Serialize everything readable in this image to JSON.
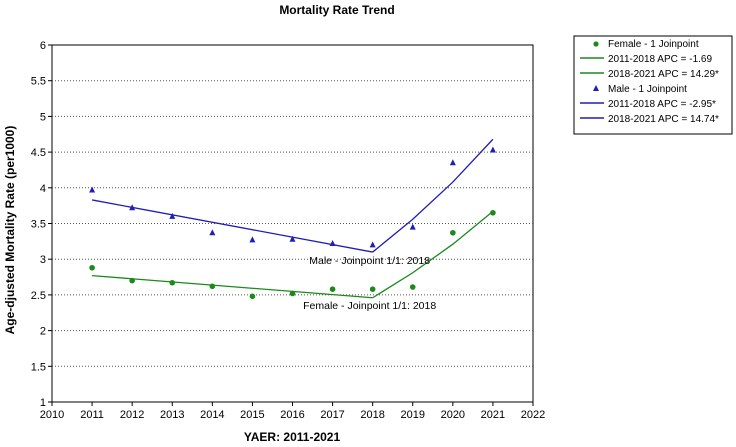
{
  "chart_data": {
    "type": "line",
    "title": "Mortality Rate Trend",
    "xlabel": "YAER: 2011-2021",
    "ylabel": "Age-djusted  Mortality Rate (per1000)",
    "xlim": [
      2010,
      2022
    ],
    "ylim": [
      1,
      6
    ],
    "xticks": [
      "2010",
      "2011",
      "2012",
      "2013",
      "2014",
      "2015",
      "2016",
      "2017",
      "2018",
      "2019",
      "2020",
      "2021",
      "2022"
    ],
    "yticks": [
      "1",
      "1.5",
      "2",
      "2.5",
      "3",
      "3.5",
      "4",
      "4.5",
      "5",
      "5.5",
      "6"
    ],
    "series": [
      {
        "name": "Female - 1 Joinpoint",
        "color": "#1a8a1a",
        "marker": "circle",
        "x": [
          2011,
          2012,
          2013,
          2014,
          2015,
          2016,
          2017,
          2018,
          2019,
          2020,
          2021
        ],
        "observed": [
          2.88,
          2.7,
          2.67,
          2.62,
          2.48,
          2.52,
          2.58,
          2.58,
          2.61,
          3.37,
          3.65
        ],
        "fit": [
          {
            "label": "2011-2018 APC  = -1.69",
            "x": [
              2011,
              2018
            ],
            "y": [
              2.77,
              2.46
            ]
          },
          {
            "label": "2018-2021 APC  = 14.29*",
            "x": [
              2018,
              2019,
              2020,
              2021
            ],
            "y": [
              2.46,
              2.81,
              3.21,
              3.67
            ]
          }
        ],
        "annotation": {
          "text": "Female - Joinpoint 1/1:  2018",
          "x": 2018,
          "y": 2.3
        }
      },
      {
        "name": "Male - 1 Joinpoint",
        "color": "#1f1fb8",
        "marker": "triangle",
        "x": [
          2011,
          2012,
          2013,
          2014,
          2015,
          2016,
          2017,
          2018,
          2019,
          2020,
          2021
        ],
        "observed": [
          3.97,
          3.72,
          3.6,
          3.37,
          3.27,
          3.28,
          3.22,
          3.2,
          3.45,
          4.35,
          4.53
        ],
        "fit": [
          {
            "label": "2011-2018 APC  = -2.95*",
            "x": [
              2011,
              2018
            ],
            "y": [
              3.83,
              3.1
            ]
          },
          {
            "label": "2018-2021 APC  = 14.74*",
            "x": [
              2018,
              2019,
              2020,
              2021
            ],
            "y": [
              3.1,
              3.56,
              4.08,
              4.68
            ]
          }
        ],
        "annotation": {
          "text": "Male - Joinpoint 1/1:  2018",
          "x": 2018,
          "y": 2.93
        }
      }
    ],
    "legend_position": "top-right, outside plot"
  }
}
